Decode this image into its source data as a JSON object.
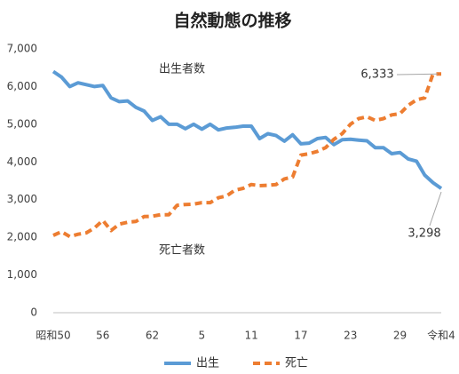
{
  "chart_data": {
    "type": "line",
    "title": "自然動態の推移",
    "categories": [
      "昭和50",
      null,
      null,
      null,
      null,
      null,
      "56",
      null,
      null,
      null,
      null,
      null,
      "62",
      null,
      null,
      null,
      null,
      null,
      "5",
      null,
      null,
      null,
      null,
      null,
      "11",
      null,
      null,
      null,
      null,
      null,
      "17",
      null,
      null,
      null,
      null,
      null,
      "23",
      null,
      null,
      null,
      null,
      null,
      "29",
      null,
      null,
      null,
      null,
      "令和4"
    ],
    "series": [
      {
        "name": "出生",
        "color": "#5b9bd5",
        "dash": false,
        "values": [
          6400,
          6250,
          6000,
          6100,
          6050,
          6000,
          6030,
          5700,
          5600,
          5620,
          5450,
          5350,
          5100,
          5200,
          5000,
          5000,
          4880,
          5000,
          4870,
          5000,
          4850,
          4900,
          4920,
          4950,
          4950,
          4620,
          4750,
          4700,
          4550,
          4720,
          4480,
          4500,
          4620,
          4650,
          4460,
          4590,
          4600,
          4580,
          4560,
          4380,
          4380,
          4220,
          4250,
          4080,
          4020,
          3650,
          3450,
          3298
        ],
        "value_labels": [
          null,
          null,
          null,
          null,
          null,
          null,
          null,
          null,
          null,
          null,
          null,
          null,
          null,
          null,
          null,
          null,
          null,
          null,
          null,
          null,
          null,
          null,
          null,
          null,
          null,
          null,
          null,
          null,
          null,
          null,
          null,
          null,
          null,
          null,
          null,
          null,
          null,
          null,
          null,
          null,
          null,
          null,
          null,
          null,
          null,
          null,
          null,
          "3,298"
        ],
        "annotation": "出生者数"
      },
      {
        "name": "死亡",
        "color": "#ed7d31",
        "dash": true,
        "values": [
          2050,
          2150,
          2020,
          2080,
          2120,
          2250,
          2450,
          2180,
          2350,
          2400,
          2420,
          2550,
          2560,
          2600,
          2600,
          2850,
          2870,
          2880,
          2920,
          2920,
          3050,
          3100,
          3250,
          3300,
          3400,
          3370,
          3380,
          3400,
          3550,
          3600,
          4180,
          4220,
          4280,
          4380,
          4600,
          4750,
          5000,
          5150,
          5200,
          5100,
          5150,
          5250,
          5280,
          5500,
          5650,
          5700,
          6333,
          6333
        ],
        "value_labels": [
          null,
          null,
          null,
          null,
          null,
          null,
          null,
          null,
          null,
          null,
          null,
          null,
          null,
          null,
          null,
          null,
          null,
          null,
          null,
          null,
          null,
          null,
          null,
          null,
          null,
          null,
          null,
          null,
          null,
          null,
          null,
          null,
          null,
          null,
          null,
          null,
          null,
          null,
          null,
          null,
          null,
          null,
          null,
          null,
          null,
          null,
          null,
          "6,333"
        ],
        "annotation": "死亡者数"
      }
    ],
    "ylim": [
      0,
      7000
    ],
    "yticks": [
      0,
      {
        "value": 1000,
        "label": "1,000"
      },
      {
        "value": 2000,
        "label": "2,000"
      },
      {
        "value": 3000,
        "label": "3,000"
      },
      {
        "value": 4000,
        "label": "4,000"
      },
      {
        "value": 5000,
        "label": "5,000"
      },
      {
        "value": 6000,
        "label": "6,000"
      },
      {
        "value": 7000,
        "label": "7,000"
      }
    ],
    "grid": false,
    "legend": "bottom"
  }
}
